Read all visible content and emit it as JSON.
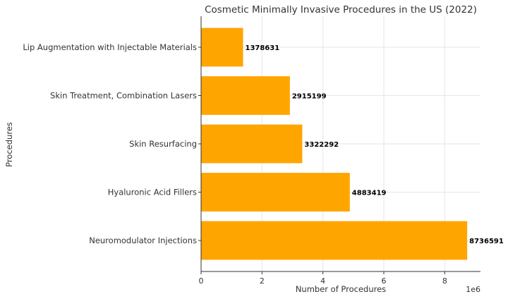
{
  "chart_data": {
    "type": "bar",
    "orientation": "horizontal",
    "title": "Cosmetic Minimally Invasive Procedures in the US (2022)",
    "xlabel": "Number of Procedures",
    "ylabel": "Procedures",
    "x_offset_label": "1e6",
    "categories": [
      "Neuromodulator Injections",
      "Hyaluronic Acid Fillers",
      "Skin Resurfacing",
      "Skin Treatment, Combination Lasers",
      "Lip Augmentation with Injectable Materials"
    ],
    "values": [
      8736591,
      4883419,
      3322292,
      2915199,
      1378631
    ],
    "value_labels": [
      "8736591",
      "4883419",
      "3322292",
      "2915199",
      "1378631"
    ],
    "xticks": [
      0,
      2,
      4,
      6,
      8
    ],
    "xtick_labels": [
      "0",
      "2",
      "4",
      "6",
      "8"
    ],
    "xlim": [
      0,
      9173420
    ],
    "grid": true,
    "bar_color": "#FFA500"
  }
}
